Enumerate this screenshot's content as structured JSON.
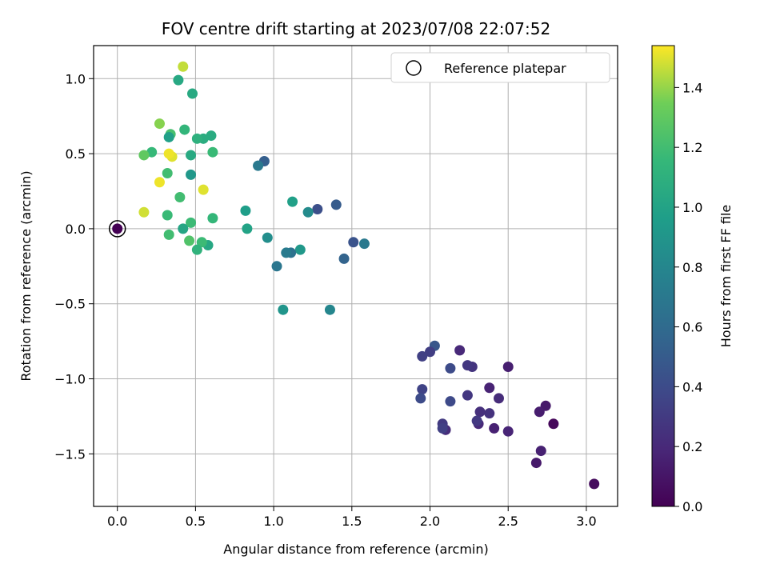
{
  "chart_data": {
    "type": "scatter",
    "title": "FOV centre drift starting at 2023/07/08 22:07:52",
    "xlabel": "Angular distance from reference (arcmin)",
    "ylabel": "Rotation from reference (arcmin)",
    "xlim": [
      -0.152,
      3.2
    ],
    "ylim": [
      -1.85,
      1.22
    ],
    "xticks": [
      0.0,
      0.5,
      1.0,
      1.5,
      2.0,
      2.5,
      3.0
    ],
    "xtick_labels": [
      "0.0",
      "0.5",
      "1.0",
      "1.5",
      "2.0",
      "2.5",
      "3.0"
    ],
    "yticks": [
      -1.5,
      -1.0,
      -0.5,
      0.0,
      0.5,
      1.0
    ],
    "ytick_labels": [
      "−1.5",
      "−1.0",
      "−0.5",
      "0.0",
      "0.5",
      "1.0"
    ],
    "grid": true,
    "legend": {
      "position": "top-right",
      "label": "Reference platepar"
    },
    "colorbar": {
      "label": "Hours from first FF file",
      "range": [
        0.0,
        1.54
      ],
      "ticks": [
        0.0,
        0.2,
        0.4,
        0.6,
        0.8,
        1.0,
        1.2,
        1.4
      ],
      "tick_labels": [
        "0.0",
        "0.2",
        "0.4",
        "0.6",
        "0.8",
        "1.0",
        "1.2",
        "1.4"
      ],
      "colormap": "viridis"
    },
    "reference_point": {
      "x": 0.0,
      "y": 0.0,
      "hours": 0.0
    },
    "series": [
      {
        "points": [
          [
            3.05,
            -1.7,
            0.05
          ],
          [
            2.79,
            -1.3,
            0.03
          ],
          [
            2.74,
            -1.18,
            0.12
          ],
          [
            2.7,
            -1.22,
            0.14
          ],
          [
            2.71,
            -1.48,
            0.16
          ],
          [
            2.68,
            -1.56,
            0.12
          ],
          [
            2.5,
            -0.92,
            0.15
          ],
          [
            2.5,
            -1.35,
            0.18
          ],
          [
            2.44,
            -1.13,
            0.22
          ],
          [
            2.41,
            -1.33,
            0.16
          ],
          [
            2.38,
            -1.06,
            0.17
          ],
          [
            2.38,
            -1.23,
            0.25
          ],
          [
            2.32,
            -1.22,
            0.24
          ],
          [
            2.31,
            -1.3,
            0.2
          ],
          [
            2.3,
            -1.28,
            0.29
          ],
          [
            2.27,
            -0.92,
            0.26
          ],
          [
            2.24,
            -0.91,
            0.28
          ],
          [
            2.24,
            -1.11,
            0.28
          ],
          [
            2.19,
            -0.81,
            0.2
          ],
          [
            2.13,
            -0.93,
            0.4
          ],
          [
            2.13,
            -1.15,
            0.39
          ],
          [
            2.1,
            -1.34,
            0.22
          ],
          [
            2.08,
            -1.3,
            0.3
          ],
          [
            2.08,
            -1.33,
            0.33
          ],
          [
            2.03,
            -0.78,
            0.47
          ],
          [
            2.0,
            -0.82,
            0.32
          ],
          [
            1.95,
            -0.85,
            0.33
          ],
          [
            1.95,
            -1.07,
            0.35
          ],
          [
            1.94,
            -1.13,
            0.4
          ],
          [
            1.58,
            -0.1,
            0.7
          ],
          [
            1.51,
            -0.09,
            0.45
          ],
          [
            1.45,
            -0.2,
            0.55
          ],
          [
            1.4,
            0.16,
            0.5
          ],
          [
            1.36,
            -0.54,
            0.8
          ],
          [
            1.28,
            0.13,
            0.42
          ],
          [
            1.22,
            0.11,
            0.83
          ],
          [
            1.17,
            -0.14,
            0.92
          ],
          [
            1.12,
            0.18,
            0.98
          ],
          [
            1.11,
            -0.16,
            0.65
          ],
          [
            1.08,
            -0.16,
            0.72
          ],
          [
            1.06,
            -0.54,
            0.9
          ],
          [
            1.02,
            -0.25,
            0.68
          ],
          [
            0.96,
            -0.06,
            0.85
          ],
          [
            0.94,
            0.45,
            0.52
          ],
          [
            0.9,
            0.42,
            0.7
          ],
          [
            0.83,
            0.0,
            1.0
          ],
          [
            0.82,
            0.12,
            0.96
          ],
          [
            0.61,
            0.07,
            1.15
          ],
          [
            0.61,
            0.51,
            1.17
          ],
          [
            0.6,
            0.62,
            1.06
          ],
          [
            0.58,
            -0.11,
            1.03
          ],
          [
            0.55,
            0.6,
            1.07
          ],
          [
            0.54,
            -0.09,
            1.18
          ],
          [
            0.55,
            0.26,
            1.5
          ],
          [
            0.51,
            0.6,
            1.1
          ],
          [
            0.51,
            -0.14,
            1.12
          ],
          [
            0.48,
            0.9,
            1.05
          ],
          [
            0.47,
            0.49,
            1.05
          ],
          [
            0.47,
            0.36,
            0.92
          ],
          [
            0.47,
            0.04,
            1.18
          ],
          [
            0.46,
            -0.08,
            1.25
          ],
          [
            0.43,
            0.66,
            1.14
          ],
          [
            0.42,
            1.08,
            1.46
          ],
          [
            0.42,
            0.0,
            1.02
          ],
          [
            0.4,
            0.21,
            1.2
          ],
          [
            0.39,
            0.99,
            1.04
          ],
          [
            0.35,
            0.48,
            1.5
          ],
          [
            0.34,
            0.63,
            1.22
          ],
          [
            0.33,
            0.61,
            0.98
          ],
          [
            0.33,
            0.5,
            1.52
          ],
          [
            0.32,
            0.37,
            1.2
          ],
          [
            0.33,
            -0.04,
            1.2
          ],
          [
            0.32,
            0.09,
            1.17
          ],
          [
            0.27,
            0.7,
            1.38
          ],
          [
            0.27,
            0.31,
            1.52
          ],
          [
            0.22,
            0.51,
            1.16
          ],
          [
            0.17,
            0.49,
            1.3
          ],
          [
            0.17,
            0.11,
            1.48
          ],
          [
            0.0,
            0.0,
            0.0
          ]
        ]
      }
    ]
  }
}
